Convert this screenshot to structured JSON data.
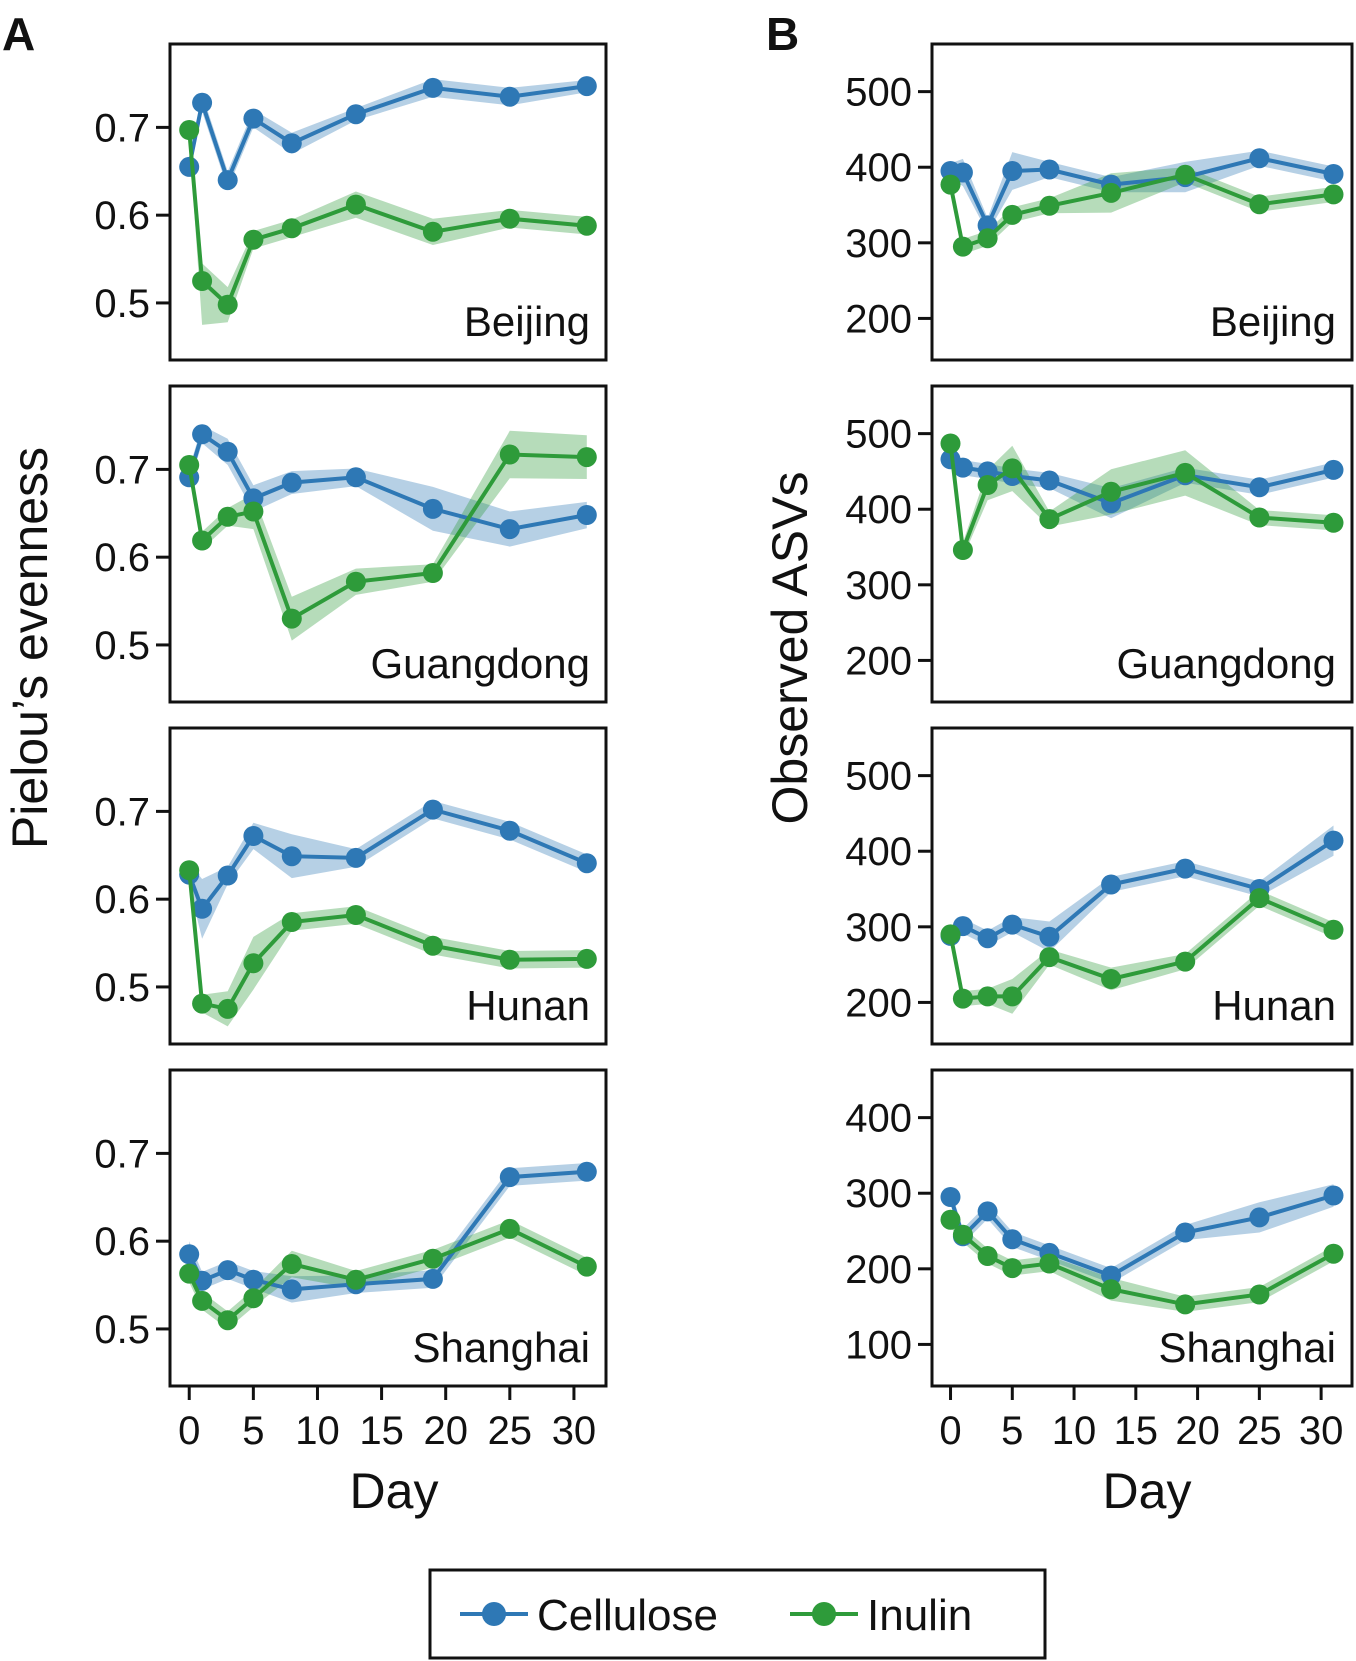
{
  "panel_labels": {
    "A": "A",
    "B": "B"
  },
  "x_axis_label": "Day",
  "x_ticks": [
    "0",
    "5",
    "10",
    "15",
    "20",
    "25",
    "30"
  ],
  "y_axis_labels": {
    "A": "Pielou’s evenness",
    "B": "Observed ASVs"
  },
  "legend": {
    "items": [
      {
        "label": "Cellulose",
        "color": "#2E78B5"
      },
      {
        "label": "Inulin",
        "color": "#2E9B3A"
      }
    ]
  },
  "chart_data": [
    {
      "type": "line",
      "panel": "A",
      "facet": "Beijing",
      "xlabel": "Day",
      "ylabel": "Pielou’s evenness",
      "xlim": [
        -1.5,
        32.5
      ],
      "ylim": [
        0.435,
        0.795
      ],
      "yticks": [
        0.5,
        0.6,
        0.7
      ],
      "ytick_labels": [
        "0.5",
        "0.6",
        "0.7"
      ],
      "x": [
        0,
        1,
        3,
        5,
        8,
        13,
        19,
        25,
        31
      ],
      "series": [
        {
          "name": "Cellulose",
          "color": "#2E78B5",
          "values": [
            0.655,
            0.728,
            0.64,
            0.71,
            0.682,
            0.715,
            0.745,
            0.735,
            0.747
          ],
          "lower": [
            0.645,
            0.718,
            0.63,
            0.7,
            0.67,
            0.708,
            0.735,
            0.725,
            0.74
          ],
          "upper": [
            0.665,
            0.738,
            0.65,
            0.72,
            0.694,
            0.722,
            0.755,
            0.745,
            0.754
          ]
        },
        {
          "name": "Inulin",
          "color": "#2E9B3A",
          "values": [
            0.697,
            0.525,
            0.498,
            0.572,
            0.585,
            0.612,
            0.581,
            0.596,
            0.588
          ],
          "lower": [
            0.687,
            0.475,
            0.478,
            0.562,
            0.575,
            0.597,
            0.566,
            0.586,
            0.578
          ],
          "upper": [
            0.707,
            0.545,
            0.518,
            0.582,
            0.595,
            0.627,
            0.596,
            0.606,
            0.598
          ]
        }
      ]
    },
    {
      "type": "line",
      "panel": "A",
      "facet": "Guangdong",
      "xlabel": "Day",
      "ylabel": "Pielou’s evenness",
      "xlim": [
        -1.5,
        32.5
      ],
      "ylim": [
        0.435,
        0.795
      ],
      "yticks": [
        0.5,
        0.6,
        0.7
      ],
      "ytick_labels": [
        "0.5",
        "0.6",
        "0.7"
      ],
      "x": [
        0,
        1,
        3,
        5,
        8,
        13,
        19,
        25,
        31
      ],
      "series": [
        {
          "name": "Cellulose",
          "color": "#2E78B5",
          "values": [
            0.691,
            0.74,
            0.72,
            0.667,
            0.685,
            0.691,
            0.655,
            0.632,
            0.648
          ],
          "lower": [
            0.681,
            0.73,
            0.705,
            0.652,
            0.672,
            0.681,
            0.63,
            0.612,
            0.633
          ],
          "upper": [
            0.701,
            0.75,
            0.735,
            0.682,
            0.698,
            0.701,
            0.68,
            0.652,
            0.663
          ]
        },
        {
          "name": "Inulin",
          "color": "#2E9B3A",
          "values": [
            0.705,
            0.619,
            0.646,
            0.652,
            0.53,
            0.572,
            0.582,
            0.717,
            0.714
          ],
          "lower": [
            0.695,
            0.609,
            0.636,
            0.632,
            0.505,
            0.557,
            0.572,
            0.69,
            0.689
          ],
          "upper": [
            0.715,
            0.629,
            0.656,
            0.672,
            0.555,
            0.587,
            0.592,
            0.744,
            0.739
          ]
        }
      ]
    },
    {
      "type": "line",
      "panel": "A",
      "facet": "Hunan",
      "xlabel": "Day",
      "ylabel": "Pielou’s evenness",
      "xlim": [
        -1.5,
        32.5
      ],
      "ylim": [
        0.435,
        0.795
      ],
      "yticks": [
        0.5,
        0.6,
        0.7
      ],
      "ytick_labels": [
        "0.5",
        "0.6",
        "0.7"
      ],
      "x": [
        0,
        1,
        3,
        5,
        8,
        13,
        19,
        25,
        31
      ],
      "series": [
        {
          "name": "Cellulose",
          "color": "#2E78B5",
          "values": [
            0.628,
            0.589,
            0.627,
            0.672,
            0.649,
            0.647,
            0.702,
            0.678,
            0.641
          ],
          "lower": [
            0.615,
            0.555,
            0.617,
            0.657,
            0.624,
            0.637,
            0.692,
            0.668,
            0.631
          ],
          "upper": [
            0.641,
            0.623,
            0.637,
            0.687,
            0.674,
            0.657,
            0.712,
            0.688,
            0.651
          ]
        },
        {
          "name": "Inulin",
          "color": "#2E9B3A",
          "values": [
            0.633,
            0.481,
            0.475,
            0.527,
            0.574,
            0.582,
            0.547,
            0.531,
            0.532
          ],
          "lower": [
            0.623,
            0.471,
            0.455,
            0.497,
            0.564,
            0.572,
            0.537,
            0.521,
            0.522
          ],
          "upper": [
            0.643,
            0.491,
            0.495,
            0.557,
            0.584,
            0.592,
            0.557,
            0.541,
            0.542
          ]
        }
      ]
    },
    {
      "type": "line",
      "panel": "A",
      "facet": "Shanghai",
      "xlabel": "Day",
      "ylabel": "Pielou’s evenness",
      "xlim": [
        -1.5,
        32.5
      ],
      "ylim": [
        0.435,
        0.795
      ],
      "yticks": [
        0.5,
        0.6,
        0.7
      ],
      "ytick_labels": [
        "0.5",
        "0.6",
        "0.7"
      ],
      "x": [
        0,
        1,
        3,
        5,
        8,
        13,
        19,
        25,
        31
      ],
      "series": [
        {
          "name": "Cellulose",
          "color": "#2E78B5",
          "values": [
            0.585,
            0.555,
            0.567,
            0.556,
            0.545,
            0.551,
            0.557,
            0.673,
            0.679
          ],
          "lower": [
            0.57,
            0.545,
            0.557,
            0.546,
            0.53,
            0.541,
            0.547,
            0.663,
            0.669
          ],
          "upper": [
            0.6,
            0.565,
            0.577,
            0.566,
            0.56,
            0.561,
            0.567,
            0.683,
            0.689
          ]
        },
        {
          "name": "Inulin",
          "color": "#2E9B3A",
          "values": [
            0.563,
            0.532,
            0.51,
            0.535,
            0.574,
            0.556,
            0.58,
            0.614,
            0.571
          ],
          "lower": [
            0.553,
            0.522,
            0.5,
            0.525,
            0.559,
            0.546,
            0.57,
            0.604,
            0.561
          ],
          "upper": [
            0.573,
            0.542,
            0.52,
            0.545,
            0.589,
            0.566,
            0.59,
            0.624,
            0.581
          ]
        }
      ]
    },
    {
      "type": "line",
      "panel": "B",
      "facet": "Beijing",
      "xlabel": "Day",
      "ylabel": "Observed ASVs",
      "xlim": [
        -1.5,
        32.5
      ],
      "ylim": [
        145,
        563
      ],
      "yticks": [
        200,
        300,
        400,
        500
      ],
      "ytick_labels": [
        "200",
        "300",
        "400",
        "500"
      ],
      "x": [
        0,
        1,
        3,
        5,
        8,
        13,
        19,
        25,
        31
      ],
      "series": [
        {
          "name": "Cellulose",
          "color": "#2E78B5",
          "values": [
            395,
            393,
            323,
            395,
            397,
            377,
            387,
            412,
            391
          ],
          "lower": [
            385,
            375,
            313,
            370,
            387,
            367,
            367,
            402,
            381
          ],
          "upper": [
            405,
            411,
            333,
            420,
            407,
            387,
            407,
            422,
            401
          ]
        },
        {
          "name": "Inulin",
          "color": "#2E9B3A",
          "values": [
            377,
            295,
            306,
            337,
            349,
            366,
            390,
            351,
            364
          ],
          "lower": [
            367,
            285,
            296,
            327,
            339,
            340,
            380,
            341,
            354
          ],
          "upper": [
            387,
            305,
            316,
            347,
            359,
            392,
            400,
            361,
            374
          ]
        }
      ]
    },
    {
      "type": "line",
      "panel": "B",
      "facet": "Guangdong",
      "xlabel": "Day",
      "ylabel": "Observed ASVs",
      "xlim": [
        -1.5,
        32.5
      ],
      "ylim": [
        145,
        563
      ],
      "yticks": [
        200,
        300,
        400,
        500
      ],
      "ytick_labels": [
        "200",
        "300",
        "400",
        "500"
      ],
      "x": [
        0,
        1,
        3,
        5,
        8,
        13,
        19,
        25,
        31
      ],
      "series": [
        {
          "name": "Cellulose",
          "color": "#2E78B5",
          "values": [
            466,
            455,
            450,
            444,
            438,
            408,
            445,
            429,
            452
          ],
          "lower": [
            456,
            445,
            440,
            434,
            428,
            388,
            435,
            419,
            442
          ],
          "upper": [
            476,
            465,
            460,
            454,
            448,
            428,
            455,
            439,
            462
          ]
        },
        {
          "name": "Inulin",
          "color": "#2E9B3A",
          "values": [
            487,
            346,
            432,
            454,
            387,
            423,
            448,
            389,
            382
          ],
          "lower": [
            477,
            336,
            412,
            424,
            377,
            393,
            418,
            379,
            372
          ],
          "upper": [
            497,
            356,
            452,
            484,
            397,
            453,
            478,
            399,
            392
          ]
        }
      ]
    },
    {
      "type": "line",
      "panel": "B",
      "facet": "Hunan",
      "xlabel": "Day",
      "ylabel": "Observed ASVs",
      "xlim": [
        -1.5,
        32.5
      ],
      "ylim": [
        145,
        563
      ],
      "yticks": [
        200,
        300,
        400,
        500
      ],
      "ytick_labels": [
        "200",
        "300",
        "400",
        "500"
      ],
      "x": [
        0,
        1,
        3,
        5,
        8,
        13,
        19,
        25,
        31
      ],
      "series": [
        {
          "name": "Cellulose",
          "color": "#2E78B5",
          "values": [
            288,
            301,
            285,
            303,
            287,
            356,
            377,
            350,
            414
          ],
          "lower": [
            278,
            291,
            275,
            293,
            267,
            346,
            367,
            340,
            394
          ],
          "upper": [
            298,
            311,
            295,
            313,
            307,
            366,
            387,
            360,
            434
          ]
        },
        {
          "name": "Inulin",
          "color": "#2E9B3A",
          "values": [
            290,
            205,
            208,
            208,
            260,
            231,
            254,
            338,
            296
          ],
          "lower": [
            280,
            195,
            198,
            185,
            250,
            216,
            244,
            328,
            286
          ],
          "upper": [
            300,
            215,
            218,
            231,
            270,
            246,
            264,
            348,
            306
          ]
        }
      ]
    },
    {
      "type": "line",
      "panel": "B",
      "facet": "Shanghai",
      "xlabel": "Day",
      "ylabel": "Observed ASVs",
      "xlim": [
        -1.5,
        32.5
      ],
      "ylim": [
        45,
        463
      ],
      "yticks": [
        100,
        200,
        300,
        400
      ],
      "ytick_labels": [
        "100",
        "200",
        "300",
        "400"
      ],
      "x": [
        0,
        1,
        3,
        5,
        8,
        13,
        19,
        25,
        31
      ],
      "series": [
        {
          "name": "Cellulose",
          "color": "#2E78B5",
          "values": [
            295,
            243,
            276,
            239,
            221,
            191,
            248,
            268,
            297
          ],
          "lower": [
            285,
            233,
            266,
            229,
            211,
            181,
            238,
            248,
            282
          ],
          "upper": [
            305,
            253,
            286,
            249,
            231,
            201,
            258,
            288,
            312
          ]
        },
        {
          "name": "Inulin",
          "color": "#2E9B3A",
          "values": [
            265,
            245,
            217,
            201,
            207,
            173,
            153,
            166,
            220
          ],
          "lower": [
            255,
            235,
            207,
            191,
            197,
            158,
            143,
            156,
            210
          ],
          "upper": [
            275,
            255,
            227,
            211,
            217,
            188,
            163,
            176,
            230
          ]
        }
      ]
    }
  ]
}
